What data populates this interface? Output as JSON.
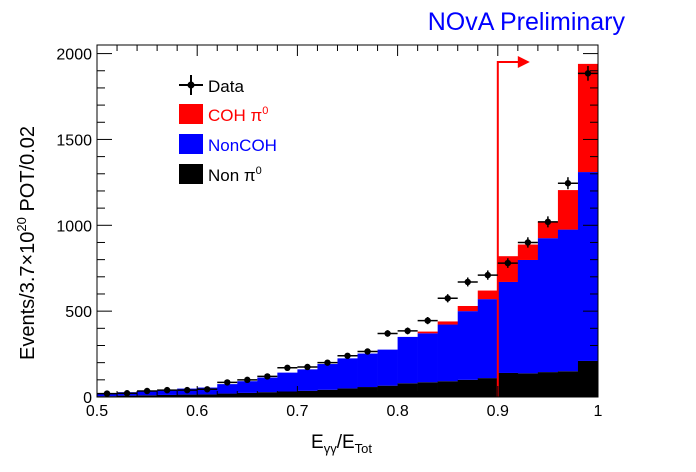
{
  "chart_data": {
    "type": "bar",
    "stacked": true,
    "title": "NOvA Preliminary",
    "title_color": "#0000ff",
    "xlabel_main": "E",
    "xlabel_sub1": "γγ",
    "xlabel_sep": "/E",
    "xlabel_sub2": "Tot",
    "ylabel_pre": "Events/3.7×10",
    "ylabel_sup": "20",
    "ylabel_post": " POT/0.02",
    "xlim": [
      0.5,
      1.0
    ],
    "ylim": [
      0,
      2050
    ],
    "xticks": [
      0.5,
      0.6,
      0.7,
      0.8,
      0.9,
      1.0
    ],
    "xtick_labels": [
      "0.5",
      "0.6",
      "0.7",
      "0.8",
      "0.9",
      "1"
    ],
    "yticks": [
      0,
      500,
      1000,
      1500,
      2000
    ],
    "ytick_labels": [
      "0",
      "500",
      "1000",
      "1500",
      "2000"
    ],
    "bin_width": 0.02,
    "bin_lo": [
      0.5,
      0.52,
      0.54,
      0.56,
      0.58,
      0.6,
      0.62,
      0.64,
      0.66,
      0.68,
      0.7,
      0.72,
      0.74,
      0.76,
      0.78,
      0.8,
      0.82,
      0.84,
      0.86,
      0.88,
      0.9,
      0.92,
      0.94,
      0.96,
      0.98
    ],
    "series": [
      {
        "name": "Non π",
        "name_sup": "0",
        "color": "#000000",
        "values": [
          5,
          8,
          10,
          12,
          14,
          15,
          20,
          24,
          28,
          32,
          36,
          42,
          50,
          58,
          66,
          80,
          86,
          92,
          100,
          110,
          140,
          138,
          145,
          150,
          210
        ]
      },
      {
        "name": "NonCOH",
        "color": "#0000ff",
        "values": [
          15,
          20,
          25,
          28,
          35,
          40,
          55,
          68,
          85,
          110,
          125,
          150,
          175,
          195,
          210,
          270,
          285,
          330,
          400,
          460,
          530,
          660,
          780,
          825,
          1100
        ]
      },
      {
        "name": "COH π",
        "name_sup": "0",
        "color": "#ff0000",
        "values": [
          0,
          0,
          0,
          0,
          0,
          0,
          0,
          0,
          0,
          0,
          0,
          0,
          0,
          0,
          0,
          0,
          10,
          18,
          30,
          50,
          150,
          90,
          95,
          230,
          630
        ]
      }
    ],
    "data_points": {
      "name": "Data",
      "x": [
        0.51,
        0.53,
        0.55,
        0.57,
        0.59,
        0.61,
        0.63,
        0.65,
        0.67,
        0.69,
        0.71,
        0.73,
        0.75,
        0.77,
        0.79,
        0.81,
        0.83,
        0.85,
        0.87,
        0.89,
        0.91,
        0.93,
        0.95,
        0.97,
        0.99
      ],
      "y": [
        20,
        22,
        35,
        40,
        40,
        45,
        85,
        100,
        120,
        170,
        175,
        200,
        240,
        265,
        370,
        385,
        445,
        575,
        670,
        710,
        780,
        900,
        1020,
        1245,
        1885
      ],
      "yerr": [
        5,
        5,
        6,
        6,
        6,
        7,
        9,
        10,
        11,
        13,
        13,
        14,
        16,
        16,
        19,
        20,
        21,
        24,
        26,
        27,
        28,
        30,
        32,
        35,
        43
      ]
    },
    "cut_line": {
      "x": 0.9,
      "color": "#ff0000"
    },
    "legend_placement": "upper-left",
    "grid": false
  }
}
